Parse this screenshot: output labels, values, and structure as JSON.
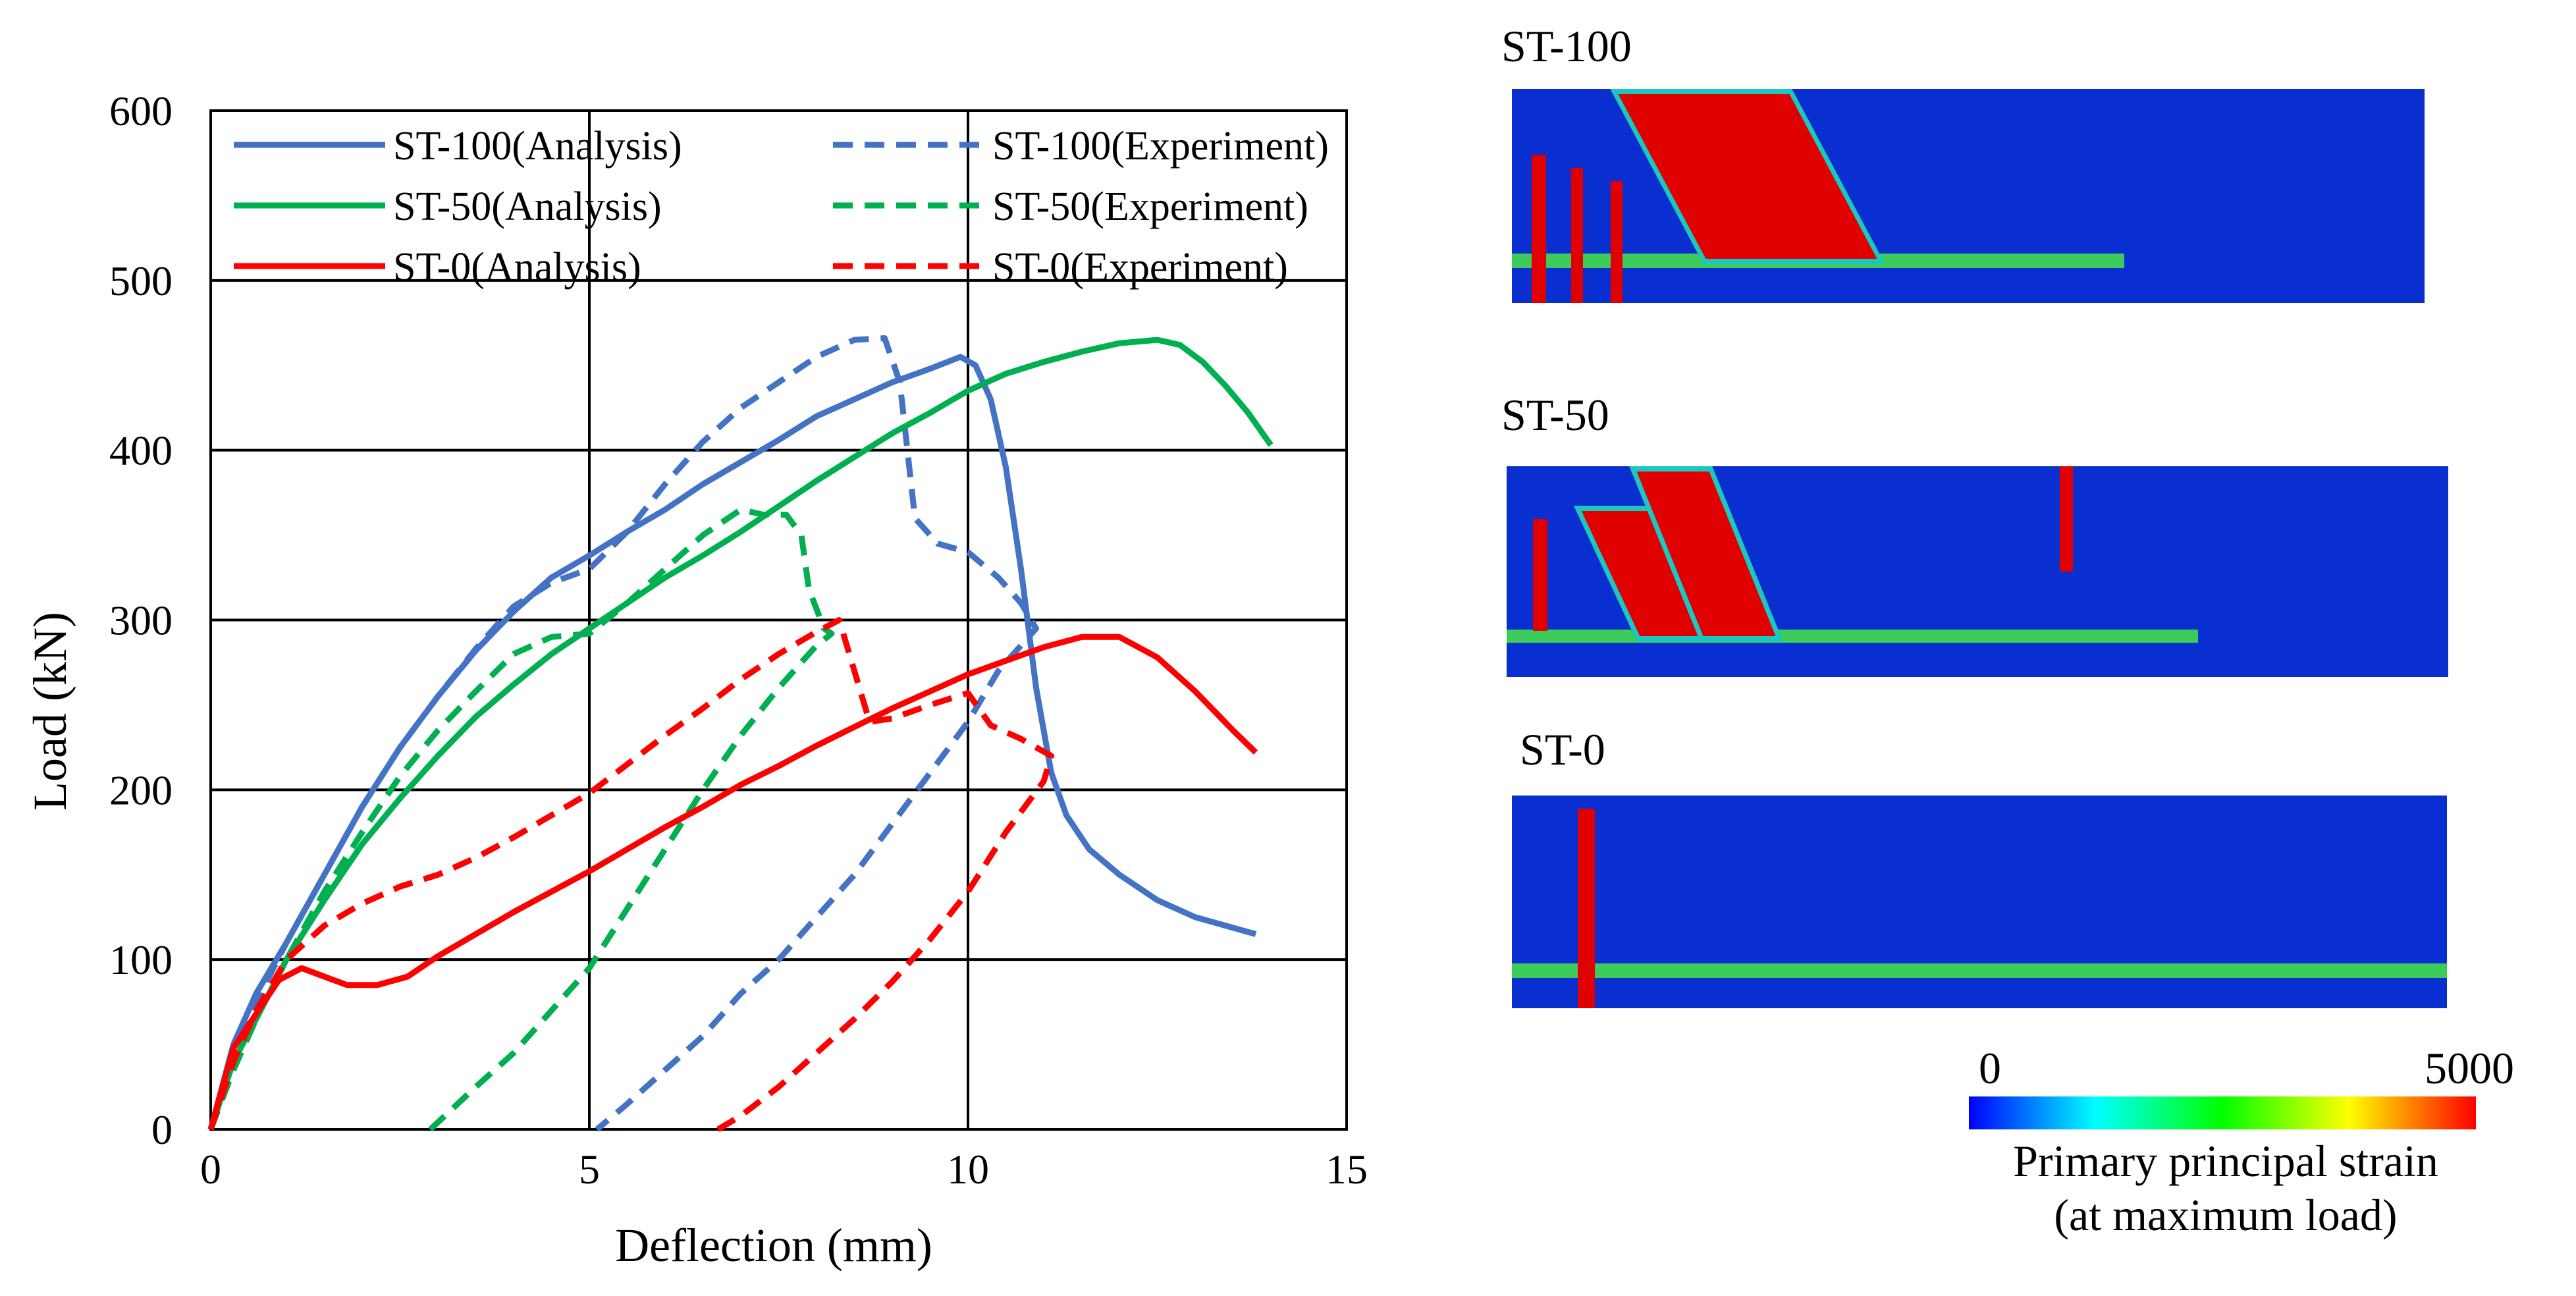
{
  "chart_data": {
    "type": "line",
    "xlabel": "Deflection (mm)",
    "ylabel": "Load (kN)",
    "xlim": [
      0,
      15
    ],
    "ylim": [
      0,
      600
    ],
    "xticks": [
      0,
      5,
      10,
      15
    ],
    "yticks": [
      0,
      100,
      200,
      300,
      400,
      500,
      600
    ],
    "grid": true,
    "legend_position": "top-inside",
    "series": [
      {
        "name": "ST-100(Analysis)",
        "color": "#4472c4",
        "dash": "solid",
        "x": [
          0,
          0.3,
          0.6,
          1.0,
          1.5,
          2.0,
          2.5,
          3.0,
          3.5,
          4.0,
          4.5,
          5.0,
          5.5,
          6.0,
          6.5,
          7.0,
          7.5,
          8.0,
          8.5,
          9.0,
          9.5,
          9.9,
          10.1,
          10.3,
          10.5,
          10.7,
          10.9,
          11.1,
          11.3,
          11.6,
          12.0,
          12.5,
          13.0,
          13.8
        ],
        "y": [
          0,
          50,
          80,
          110,
          150,
          190,
          225,
          255,
          282,
          305,
          325,
          338,
          352,
          365,
          380,
          393,
          406,
          420,
          430,
          440,
          448,
          455,
          450,
          430,
          390,
          330,
          260,
          210,
          185,
          165,
          150,
          135,
          125,
          115
        ]
      },
      {
        "name": "ST-100(Experiment)",
        "color": "#4472c4",
        "dash": "dashed",
        "x": [
          0,
          0.3,
          0.6,
          1.0,
          1.5,
          2.0,
          2.5,
          3.0,
          3.5,
          4.0,
          4.5,
          5.0,
          5.5,
          6.0,
          6.5,
          7.0,
          7.5,
          8.0,
          8.5,
          8.9,
          9.1,
          9.3,
          9.6,
          10.0,
          10.4,
          10.7,
          10.9,
          10.4,
          10.0,
          9.5,
          9.0,
          8.5,
          8.0,
          7.5,
          7.0,
          6.5,
          6.0,
          5.5,
          5.1
        ],
        "y": [
          0,
          40,
          75,
          110,
          150,
          190,
          225,
          255,
          283,
          308,
          322,
          330,
          352,
          380,
          405,
          425,
          440,
          455,
          465,
          466,
          440,
          360,
          345,
          340,
          325,
          310,
          295,
          270,
          240,
          210,
          180,
          150,
          125,
          100,
          80,
          55,
          35,
          15,
          0
        ]
      },
      {
        "name": "ST-50(Analysis)",
        "color": "#00b050",
        "dash": "solid",
        "x": [
          0,
          0.3,
          0.6,
          1.0,
          1.5,
          2.0,
          2.5,
          3.0,
          3.5,
          4.0,
          4.5,
          5.0,
          5.5,
          6.0,
          6.5,
          7.0,
          7.5,
          8.0,
          8.5,
          9.0,
          9.5,
          10.0,
          10.5,
          11.0,
          11.5,
          12.0,
          12.5,
          12.8,
          13.1,
          13.4,
          13.7,
          14.0
        ],
        "y": [
          0,
          40,
          65,
          100,
          135,
          168,
          195,
          220,
          243,
          262,
          280,
          295,
          310,
          325,
          338,
          352,
          367,
          382,
          396,
          410,
          422,
          435,
          445,
          452,
          458,
          463,
          465,
          462,
          452,
          438,
          422,
          403
        ]
      },
      {
        "name": "ST-50(Experiment)",
        "color": "#00b050",
        "dash": "dashed",
        "x": [
          0,
          0.3,
          0.6,
          1.0,
          1.5,
          2.0,
          2.5,
          3.0,
          3.5,
          4.0,
          4.5,
          5.0,
          5.5,
          6.0,
          6.5,
          7.0,
          7.3,
          7.6,
          7.8,
          7.9,
          8.1,
          8.2,
          8.0,
          7.5,
          7.0,
          6.5,
          6.0,
          5.5,
          5.0,
          4.5,
          4.0,
          3.5,
          2.9
        ],
        "y": [
          0,
          35,
          65,
          100,
          140,
          175,
          208,
          235,
          258,
          280,
          290,
          292,
          310,
          330,
          350,
          365,
          362,
          362,
          350,
          318,
          295,
          292,
          285,
          260,
          232,
          200,
          165,
          130,
          95,
          70,
          45,
          25,
          0
        ]
      },
      {
        "name": "ST-0(Analysis)",
        "color": "#ff0000",
        "dash": "solid",
        "x": [
          0,
          0.3,
          0.6,
          0.9,
          1.2,
          1.5,
          1.8,
          2.2,
          2.6,
          3.0,
          3.5,
          4.0,
          4.5,
          5.0,
          5.5,
          6.0,
          6.5,
          7.0,
          7.5,
          8.0,
          8.5,
          9.0,
          9.5,
          10.0,
          10.5,
          11.0,
          11.5,
          12.0,
          12.5,
          13.0,
          13.5,
          13.8
        ],
        "y": [
          0,
          48,
          68,
          88,
          95,
          90,
          85,
          85,
          90,
          102,
          115,
          128,
          140,
          152,
          165,
          178,
          190,
          203,
          214,
          226,
          237,
          248,
          258,
          268,
          276,
          284,
          290,
          290,
          278,
          258,
          235,
          222
        ]
      },
      {
        "name": "ST-0(Experiment)",
        "color": "#ff0000",
        "dash": "dashed",
        "x": [
          0,
          0.3,
          0.6,
          1.0,
          1.5,
          2.0,
          2.5,
          3.0,
          3.5,
          4.0,
          4.5,
          5.0,
          5.5,
          6.0,
          6.5,
          7.0,
          7.5,
          8.0,
          8.3,
          8.5,
          8.7,
          9.0,
          9.5,
          10.0,
          10.3,
          10.7,
          11.1,
          11.0,
          10.5,
          10.0,
          9.5,
          9.0,
          8.5,
          8.0,
          7.5,
          7.0,
          6.7
        ],
        "y": [
          0,
          40,
          70,
          100,
          120,
          133,
          143,
          150,
          160,
          172,
          185,
          198,
          215,
          232,
          248,
          265,
          280,
          293,
          300,
          270,
          240,
          242,
          250,
          257,
          238,
          230,
          220,
          205,
          175,
          140,
          112,
          87,
          65,
          45,
          25,
          8,
          0
        ]
      }
    ]
  },
  "fem": {
    "panels": [
      {
        "title": "ST-100"
      },
      {
        "title": "ST-50"
      },
      {
        "title": "ST-0"
      }
    ],
    "colorbar": {
      "min_label": "0",
      "max_label": "5000",
      "caption_line1": "Primary principal strain",
      "caption_line2": "(at maximum load)",
      "colors": [
        "#0000ff",
        "#00ffff",
        "#00ff00",
        "#ffff00",
        "#ff0000"
      ]
    },
    "strain_colors": {
      "low": "#0a2fd0",
      "mid": "#19c8c0",
      "high": "#e00000",
      "band": "#3ccc5a"
    }
  }
}
